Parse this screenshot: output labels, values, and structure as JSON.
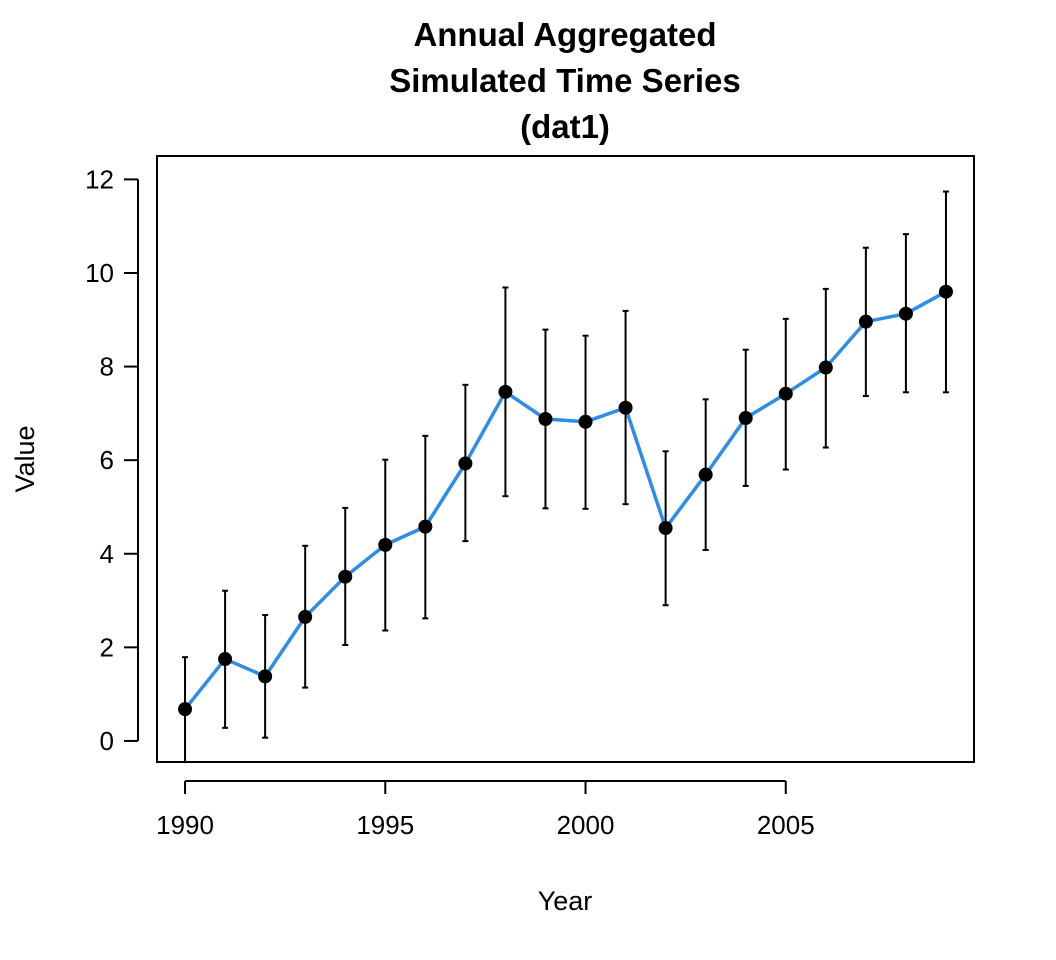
{
  "chart_data": {
    "type": "line",
    "title_lines": [
      "Annual Aggregated",
      "Simulated Time Series",
      "(dat1)"
    ],
    "xlabel": "Year",
    "ylabel": "Value",
    "xlim": [
      1989.3,
      2009.7
    ],
    "ylim": [
      -0.45,
      12.5
    ],
    "x_ticks": [
      1990,
      1995,
      2000,
      2005
    ],
    "y_ticks": [
      0,
      2,
      4,
      6,
      8,
      10,
      12
    ],
    "grid": false,
    "legend": "none",
    "line_color": "#2e8de8",
    "point_color": "#000000",
    "errorbar_color": "#000000",
    "series": [
      {
        "x": [
          1990,
          1991,
          1992,
          1993,
          1994,
          1995,
          1996,
          1997,
          1998,
          1999,
          2000,
          2001,
          2002,
          2003,
          2004,
          2005,
          2006,
          2007,
          2008,
          2009
        ],
        "values": [
          0.68,
          1.75,
          1.38,
          2.65,
          3.51,
          4.19,
          4.58,
          5.93,
          7.46,
          6.88,
          6.82,
          7.12,
          4.55,
          5.69,
          6.9,
          7.42,
          7.98,
          8.96,
          9.13,
          9.6
        ],
        "lower": [
          -0.45,
          0.28,
          0.07,
          1.14,
          2.05,
          2.36,
          2.62,
          4.27,
          5.23,
          4.97,
          4.96,
          5.06,
          2.9,
          4.08,
          5.45,
          5.8,
          6.27,
          7.37,
          7.45,
          7.45
        ],
        "upper": [
          1.79,
          3.21,
          2.69,
          4.17,
          4.98,
          6.01,
          6.52,
          7.61,
          9.69,
          8.79,
          8.66,
          9.19,
          6.19,
          7.3,
          8.36,
          9.02,
          9.66,
          10.54,
          10.83,
          11.74
        ]
      }
    ]
  }
}
